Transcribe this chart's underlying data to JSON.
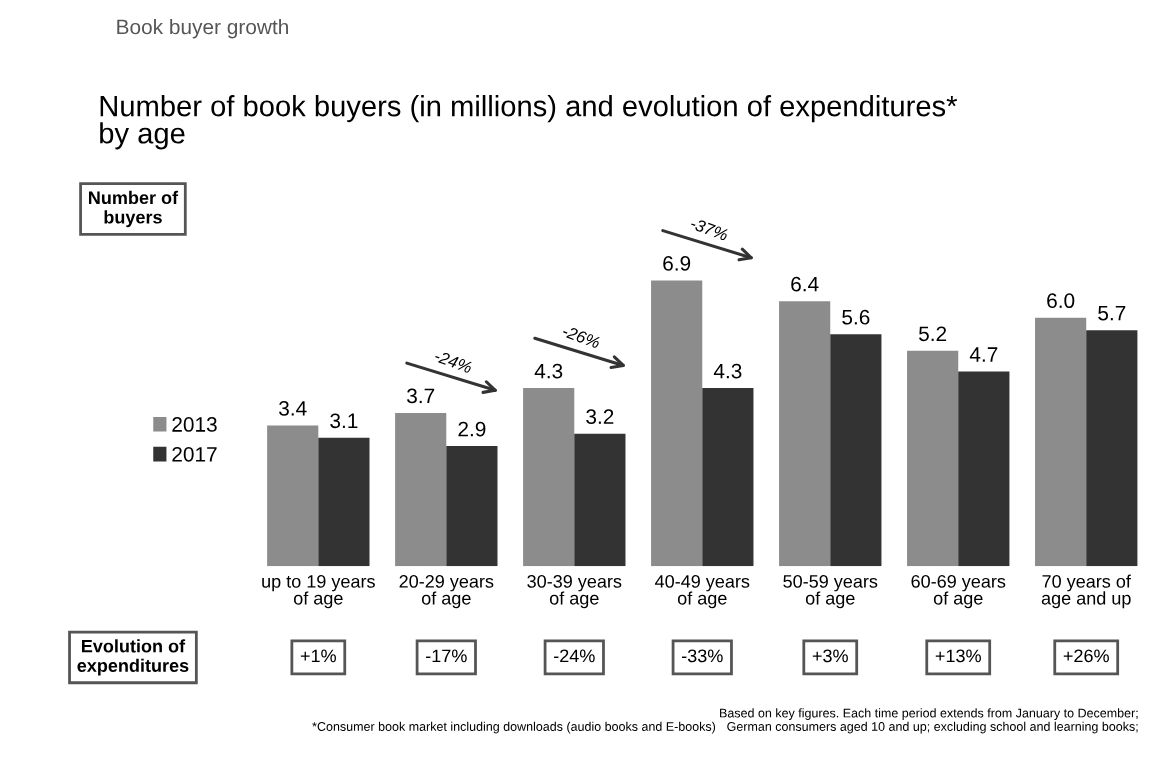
{
  "chart_data": {
    "type": "bar",
    "title": "Book buyer growth",
    "subtitle": "Number of book buyers (in millions) and evolution of expenditures*\nby age",
    "categories": [
      "up to 19 years\nof age",
      "20-29 years\nof age",
      "30-39 years\nof age",
      "40-49 years\nof age",
      "50-59 years\nof age",
      "60-69 years\nof age",
      "70 years of\nage and up"
    ],
    "series": [
      {
        "name": "2013",
        "color": "#8c8c8c",
        "values": [
          3.4,
          3.7,
          4.3,
          6.9,
          6.4,
          5.2,
          6.0
        ],
        "value_labels": [
          "3.4",
          "3.7",
          "4.3",
          "6.9",
          "6.4",
          "5.2",
          "6.0"
        ]
      },
      {
        "name": "2017",
        "color": "#333333",
        "values": [
          3.1,
          2.9,
          3.2,
          4.3,
          5.6,
          4.7,
          5.7
        ],
        "value_labels": [
          "3.1",
          "2.9",
          "3.2",
          "4.3",
          "5.6",
          "4.7",
          "5.7"
        ]
      }
    ],
    "legend": "left",
    "grid": false,
    "annotations": [
      "Number of\nbuyers",
      "Evolution of\nexpenditures",
      "+1%",
      "-17%",
      "-24%",
      "-33%",
      "+3%",
      "+13%",
      "+26%",
      "*Consumer book market including downloads (audio books and E-books)",
      "Based on key figures. Each time period extends from January to December;\nGerman consumers aged 10 and up; excluding school and learning books;",
      {
        "text": "-24%",
        "x": "20-29 years\nof age",
        "y": 3.7
      },
      {
        "text": "-26%",
        "x": "30-39 years\nof age",
        "y": 4.3
      },
      {
        "text": "-37%",
        "x": "40-49 years\nof age",
        "y": 6.9
      }
    ]
  }
}
